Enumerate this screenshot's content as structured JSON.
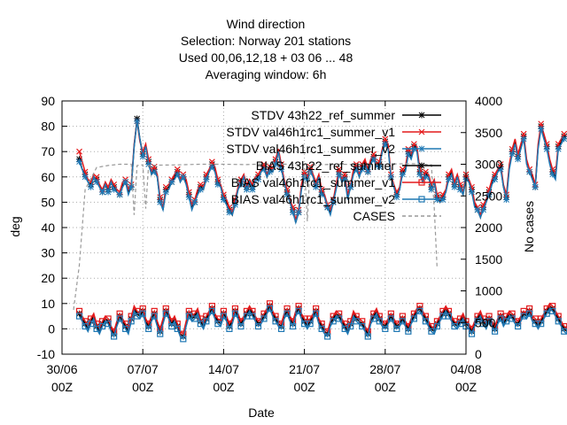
{
  "chart_data": {
    "type": "line",
    "title_lines": [
      "Wind direction",
      "Selection: Norway    201 stations",
      "Used  00,06,12,18  + 03 06 ... 48",
      "Averaging window:  6h"
    ],
    "xlabel": "Date",
    "ylabel": "deg",
    "y2label": "No cases",
    "xlim": [
      "2022-06-30T00:00",
      "2022-08-04T00:00"
    ],
    "ylim": [
      -10,
      90
    ],
    "y2lim": [
      0,
      4000
    ],
    "x_ticks": [
      "30/06\n00Z",
      "07/07\n00Z",
      "14/07\n00Z",
      "21/07\n00Z",
      "28/07\n00Z",
      "04/08\n00Z"
    ],
    "y_ticks": [
      -10,
      0,
      10,
      20,
      30,
      40,
      50,
      60,
      70,
      80,
      90
    ],
    "y2_ticks": [
      0,
      500,
      1000,
      1500,
      2000,
      2500,
      3000,
      3500,
      4000
    ],
    "grid": true,
    "legend_position": "top-right",
    "x_start": "2022-07-01T12:00",
    "x_step_hours": 6,
    "series": [
      {
        "name": "STDV 43h22_ref_summer",
        "color": "#000000",
        "marker": "star",
        "axis": "y",
        "values": [
          67,
          63,
          61,
          58,
          57,
          60,
          59,
          56,
          54,
          57,
          55,
          58,
          56,
          54,
          53,
          57,
          58,
          54,
          56,
          72,
          83,
          75,
          69,
          72,
          66,
          61,
          63,
          60,
          51,
          47,
          55,
          56,
          58,
          60,
          62,
          58,
          60,
          58,
          53,
          48,
          50,
          54,
          56,
          55,
          60,
          62,
          65,
          63,
          58,
          56,
          52,
          50,
          47,
          45,
          50,
          55,
          58,
          60,
          56,
          58,
          56,
          59,
          60,
          62,
          64,
          60,
          63,
          62,
          66,
          70,
          64,
          58,
          54,
          50,
          47,
          42,
          46,
          56,
          61,
          59,
          63,
          60,
          57,
          60,
          54,
          52,
          48,
          46,
          50,
          56,
          62,
          58,
          60,
          52,
          56,
          62,
          64,
          60,
          64,
          66,
          62,
          66,
          68,
          64,
          65,
          70,
          74,
          72,
          60,
          56,
          53,
          55,
          62,
          63,
          70,
          68,
          72,
          71,
          62,
          58,
          61,
          60,
          56,
          58,
          52,
          50,
          52,
          54,
          60,
          62,
          57,
          60,
          56,
          53,
          60,
          58,
          55,
          49,
          47,
          44,
          48,
          50,
          54,
          58,
          60,
          62,
          64,
          56,
          52,
          64,
          70,
          74,
          68,
          72,
          76,
          66,
          62,
          60,
          56,
          72,
          80,
          76,
          72,
          66,
          62,
          60,
          72,
          74,
          76
        ]
      },
      {
        "name": "STDV val46h1rc1_summer_v1",
        "color": "#e41a1c",
        "marker": "cross",
        "axis": "y",
        "values": [
          70,
          66,
          62,
          59,
          58,
          61,
          60,
          57,
          55,
          58,
          56,
          59,
          57,
          55,
          54,
          58,
          59,
          55,
          57,
          73,
          82,
          74,
          70,
          73,
          67,
          62,
          64,
          61,
          52,
          48,
          56,
          57,
          59,
          61,
          63,
          59,
          61,
          59,
          54,
          49,
          51,
          55,
          57,
          56,
          61,
          63,
          66,
          64,
          59,
          57,
          53,
          51,
          48,
          46,
          51,
          56,
          59,
          61,
          57,
          59,
          57,
          60,
          61,
          63,
          65,
          61,
          64,
          63,
          67,
          71,
          65,
          59,
          55,
          51,
          48,
          43,
          47,
          57,
          62,
          60,
          64,
          61,
          58,
          61,
          55,
          53,
          49,
          47,
          51,
          57,
          63,
          59,
          61,
          53,
          57,
          63,
          65,
          61,
          65,
          67,
          63,
          67,
          69,
          65,
          66,
          71,
          75,
          73,
          61,
          57,
          54,
          56,
          63,
          64,
          71,
          69,
          73,
          72,
          63,
          59,
          62,
          61,
          57,
          59,
          53,
          51,
          53,
          55,
          61,
          63,
          58,
          61,
          57,
          54,
          61,
          59,
          56,
          50,
          48,
          45,
          49,
          51,
          55,
          59,
          61,
          63,
          65,
          57,
          53,
          65,
          71,
          75,
          69,
          73,
          77,
          67,
          63,
          61,
          57,
          73,
          81,
          77,
          73,
          67,
          63,
          61,
          73,
          75,
          77
        ]
      },
      {
        "name": "STDV val46h1rc1_summer_v2",
        "color": "#1f78b4",
        "marker": "star",
        "axis": "y",
        "values": [
          66,
          63,
          60,
          58,
          56,
          60,
          58,
          56,
          54,
          57,
          54,
          58,
          55,
          54,
          53,
          56,
          58,
          53,
          56,
          72,
          82,
          75,
          68,
          72,
          65,
          61,
          62,
          60,
          50,
          47,
          54,
          55,
          58,
          59,
          61,
          58,
          60,
          57,
          52,
          47,
          50,
          53,
          55,
          55,
          59,
          62,
          64,
          62,
          57,
          56,
          51,
          49,
          46,
          45,
          49,
          55,
          57,
          60,
          55,
          58,
          55,
          59,
          59,
          62,
          63,
          60,
          62,
          62,
          65,
          70,
          63,
          58,
          53,
          50,
          46,
          42,
          46,
          55,
          60,
          58,
          62,
          60,
          56,
          60,
          53,
          52,
          48,
          45,
          50,
          55,
          61,
          58,
          59,
          51,
          56,
          61,
          63,
          60,
          63,
          65,
          62,
          65,
          67,
          64,
          64,
          70,
          73,
          71,
          60,
          56,
          52,
          55,
          61,
          62,
          69,
          67,
          71,
          70,
          61,
          58,
          60,
          60,
          55,
          58,
          51,
          50,
          51,
          54,
          59,
          61,
          56,
          60,
          55,
          53,
          59,
          58,
          54,
          48,
          47,
          44,
          47,
          50,
          53,
          57,
          59,
          62,
          63,
          56,
          51,
          63,
          69,
          73,
          67,
          71,
          75,
          65,
          62,
          59,
          56,
          71,
          79,
          75,
          71,
          65,
          61,
          59,
          71,
          73,
          75
        ]
      },
      {
        "name": "BIAS 43h22_ref_summer",
        "color": "#000000",
        "marker": "star",
        "axis": "y",
        "values": [
          6,
          4,
          2,
          0,
          3,
          5,
          1,
          -1,
          2,
          4,
          3,
          0,
          -2,
          2,
          5,
          3,
          1,
          -1,
          4,
          8,
          6,
          5,
          7,
          3,
          1,
          4,
          6,
          2,
          -1,
          3,
          7,
          5,
          2,
          4,
          1,
          -2,
          -3,
          2,
          6,
          4,
          5,
          7,
          3,
          1,
          4,
          6,
          8,
          5,
          3,
          2,
          6,
          4,
          1,
          3,
          7,
          5,
          2,
          4,
          6,
          8,
          6,
          4,
          2,
          3,
          5,
          7,
          9,
          6,
          4,
          2,
          1,
          5,
          7,
          4,
          2,
          6,
          8,
          5,
          3,
          1,
          3,
          5,
          7,
          3,
          1,
          -1,
          -2,
          2,
          4,
          6,
          5,
          3,
          1,
          -1,
          2,
          6,
          4,
          3,
          2,
          0,
          -2,
          3,
          5,
          7,
          4,
          2,
          1,
          3,
          5,
          3,
          1,
          2,
          4,
          2,
          0,
          3,
          5,
          7,
          8,
          6,
          4,
          2,
          0,
          -1,
          2,
          4,
          6,
          8,
          6,
          4,
          2,
          1,
          3,
          5,
          2,
          1,
          -1,
          2,
          4,
          6,
          3,
          1,
          4,
          2,
          0,
          3,
          5,
          2,
          4,
          6,
          5,
          3,
          2,
          4,
          6,
          5,
          7,
          4,
          3,
          1,
          3,
          5,
          7,
          9,
          8,
          6,
          4,
          2,
          0,
          -1
        ]
      },
      {
        "name": "BIAS val46h1rc1_summer_v1",
        "color": "#e41a1c",
        "marker": "square",
        "axis": "y",
        "values": [
          7,
          5,
          3,
          1,
          4,
          6,
          2,
          0,
          3,
          5,
          4,
          1,
          -1,
          3,
          6,
          4,
          2,
          0,
          5,
          9,
          7,
          6,
          8,
          4,
          2,
          5,
          7,
          3,
          0,
          4,
          8,
          6,
          3,
          5,
          2,
          -1,
          -2,
          3,
          7,
          5,
          6,
          8,
          4,
          2,
          5,
          7,
          9,
          6,
          4,
          3,
          7,
          5,
          2,
          4,
          8,
          6,
          3,
          5,
          7,
          9,
          7,
          5,
          3,
          4,
          6,
          8,
          10,
          7,
          5,
          3,
          2,
          6,
          8,
          5,
          3,
          7,
          9,
          6,
          4,
          2,
          4,
          6,
          8,
          4,
          2,
          0,
          -1,
          3,
          5,
          7,
          6,
          4,
          2,
          0,
          3,
          7,
          5,
          4,
          3,
          1,
          -1,
          4,
          6,
          8,
          5,
          3,
          2,
          4,
          6,
          4,
          2,
          3,
          5,
          3,
          1,
          4,
          6,
          8,
          9,
          7,
          5,
          3,
          1,
          0,
          3,
          5,
          7,
          9,
          7,
          5,
          3,
          2,
          4,
          6,
          3,
          2,
          0,
          3,
          5,
          7,
          4,
          2,
          5,
          3,
          1,
          4,
          6,
          3,
          5,
          7,
          6,
          4,
          3,
          5,
          7,
          6,
          8,
          5,
          4,
          2,
          4,
          6,
          8,
          10,
          9,
          7,
          5,
          3,
          1,
          0
        ]
      },
      {
        "name": "BIAS val46h1rc1_summer_v2",
        "color": "#1f78b4",
        "marker": "square",
        "axis": "y",
        "values": [
          5,
          3,
          1,
          -1,
          2,
          4,
          0,
          -2,
          1,
          3,
          2,
          -1,
          -3,
          1,
          4,
          2,
          0,
          -2,
          3,
          7,
          5,
          4,
          6,
          2,
          0,
          3,
          5,
          1,
          -2,
          2,
          6,
          4,
          1,
          3,
          0,
          -3,
          -4,
          1,
          5,
          3,
          4,
          6,
          2,
          0,
          3,
          5,
          7,
          4,
          2,
          1,
          5,
          3,
          0,
          2,
          6,
          4,
          1,
          3,
          5,
          7,
          5,
          3,
          1,
          2,
          4,
          6,
          8,
          5,
          3,
          1,
          0,
          4,
          6,
          3,
          1,
          5,
          7,
          4,
          2,
          0,
          2,
          4,
          6,
          2,
          0,
          -2,
          -3,
          1,
          3,
          5,
          4,
          2,
          0,
          -2,
          1,
          5,
          3,
          2,
          1,
          -1,
          -3,
          2,
          4,
          6,
          3,
          1,
          0,
          2,
          4,
          2,
          0,
          1,
          3,
          1,
          -1,
          2,
          4,
          6,
          7,
          5,
          3,
          1,
          -1,
          -2,
          1,
          3,
          5,
          7,
          5,
          3,
          1,
          0,
          2,
          4,
          1,
          0,
          -2,
          1,
          3,
          5,
          2,
          0,
          3,
          1,
          -1,
          2,
          4,
          1,
          3,
          5,
          4,
          2,
          1,
          3,
          5,
          4,
          6,
          3,
          2,
          0,
          2,
          4,
          6,
          8,
          7,
          5,
          3,
          1,
          -1,
          -2
        ]
      },
      {
        "name": "CASES",
        "color": "#999999",
        "marker": "none",
        "dashed": true,
        "axis": "y2",
        "x": [
          "2022-07-01T00:00",
          "2022-07-01T12:00",
          "2022-07-02T00:00",
          "2022-07-03T00:00",
          "2022-07-04T00:00",
          "2022-07-05T00:00",
          "2022-07-06T00:00",
          "2022-07-06T06:00",
          "2022-07-06T12:00",
          "2022-07-07T00:00",
          "2022-07-07T06:00",
          "2022-07-07T12:00",
          "2022-07-08T00:00",
          "2022-07-10T00:00",
          "2022-07-12T00:00",
          "2022-07-14T00:00",
          "2022-07-16T00:00",
          "2022-07-18T00:00",
          "2022-07-21T00:00",
          "2022-07-21T06:00",
          "2022-07-21T12:00",
          "2022-07-24T00:00",
          "2022-07-26T00:00",
          "2022-07-28T00:00",
          "2022-07-30T00:00",
          "2022-07-31T00:00",
          "2022-08-01T00:00",
          "2022-08-01T06:00",
          "2022-08-01T12:00"
        ],
        "values": [
          700,
          1400,
          2600,
          2950,
          2980,
          3000,
          3000,
          2200,
          2980,
          2990,
          2300,
          2980,
          2985,
          2990,
          3000,
          3000,
          2995,
          3010,
          2990,
          2100,
          2990,
          3000,
          2995,
          3000,
          3010,
          3005,
          2990,
          2300,
          1350
        ]
      }
    ]
  }
}
